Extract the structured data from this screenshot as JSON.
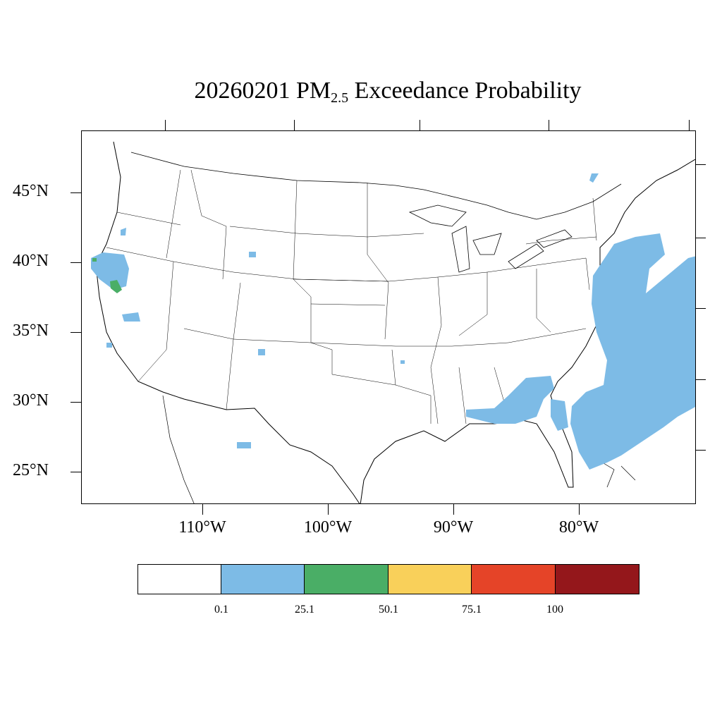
{
  "title": {
    "date": "20260201",
    "species": "PM",
    "subscript": "2.5",
    "suffix": "Exceedance Probability"
  },
  "axes": {
    "lat_labels": [
      "45°N",
      "40°N",
      "35°N",
      "30°N",
      "25°N"
    ],
    "lon_labels": [
      "110°W",
      "100°W",
      "90°W",
      "80°W"
    ]
  },
  "legend": {
    "colors": [
      "#ffffff",
      "#7dbbe6",
      "#4aae66",
      "#f9d05a",
      "#e54428",
      "#94171b"
    ],
    "labels": [
      "0.1",
      "25.1",
      "50.1",
      "75.1",
      "100"
    ]
  },
  "regions": {
    "probability_0_1_to_25": "#7dbbe6",
    "probability_25_1_to_50": "#4aae66"
  }
}
